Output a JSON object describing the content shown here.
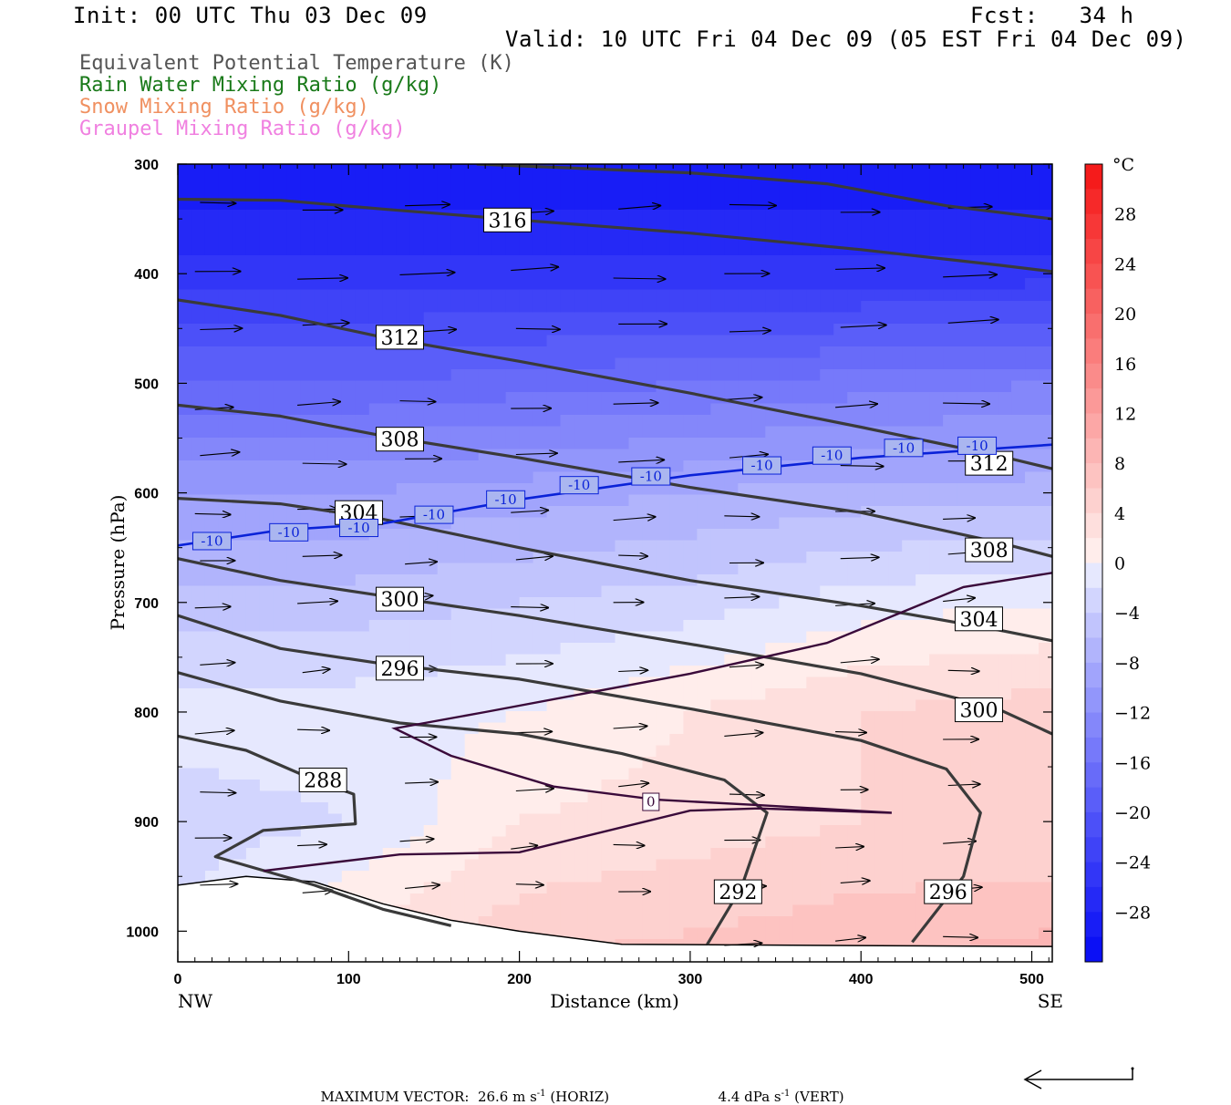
{
  "header": {
    "init": "Init: 00 UTC Thu 03 Dec 09",
    "fcst": "Fcst:   34 h",
    "valid": "Valid: 10 UTC Fri 04 Dec 09 (05 EST Fri 04 Dec 09)"
  },
  "fields": [
    {
      "label": "Equivalent Potential Temperature (K)",
      "color": "#555555"
    },
    {
      "label": "Rain Water Mixing Ratio (g/kg)",
      "color": "#1a7a1a"
    },
    {
      "label": "Snow Mixing Ratio (g/kg)",
      "color": "#f09060"
    },
    {
      "label": "Graupel Mixing Ratio (g/kg)",
      "color": "#f080e0"
    }
  ],
  "footer": {
    "max_vector_label": "MAXIMUM VECTOR:",
    "horiz_value": "26.6 m s",
    "horiz_exp": "-1",
    "horiz_unit": "(HORIZ)",
    "vert_value": "4.4 dPa s",
    "vert_exp": "-1",
    "vert_unit": "(VERT)"
  },
  "chart_data": {
    "type": "cross-section",
    "xlabel": "Distance (km)",
    "ylabel": "Pressure (hPa)",
    "xlim": [
      0,
      512
    ],
    "ylim": [
      1028,
      300
    ],
    "x_ticks": [
      0,
      100,
      200,
      300,
      400,
      500
    ],
    "y_ticks": [
      300,
      400,
      500,
      600,
      700,
      800,
      900,
      1000
    ],
    "x_end_labels": {
      "left": "NW",
      "right": "SE"
    },
    "colorbar": {
      "unit": "°C",
      "min": -32,
      "max": 32,
      "step": 4,
      "labels": [
        28,
        24,
        20,
        16,
        12,
        8,
        4,
        0,
        -4,
        -8,
        -12,
        -16,
        -20,
        -24,
        -28
      ]
    },
    "temperature_field": {
      "x_nodes": [
        0,
        100,
        200,
        300,
        400,
        512
      ],
      "p_nodes": [
        300,
        400,
        500,
        600,
        700,
        800,
        900,
        1000,
        1028
      ],
      "values_c": [
        [
          -30,
          -30,
          -30,
          -30,
          -30,
          -30
        ],
        [
          -25,
          -25,
          -25,
          -25,
          -25,
          -25
        ],
        [
          -18,
          -18,
          -17,
          -16,
          -15,
          -14
        ],
        [
          -10,
          -10,
          -9,
          -8,
          -7,
          -7
        ],
        [
          -5,
          -5,
          -4,
          -3,
          -1,
          0
        ],
        [
          -1,
          -1,
          0,
          2,
          4,
          5
        ],
        [
          -3,
          -2,
          2,
          3,
          4,
          4
        ],
        [
          -2,
          2,
          5,
          6,
          7,
          8
        ],
        [
          -2,
          3,
          6,
          7,
          8,
          9
        ]
      ]
    },
    "theta_e_contours": [
      {
        "label": "316",
        "points": [
          [
            0,
            332
          ],
          [
            60,
            333
          ],
          [
            120,
            341
          ],
          [
            200,
            351
          ],
          [
            300,
            363
          ],
          [
            400,
            378
          ],
          [
            480,
            392
          ],
          [
            512,
            398
          ]
        ]
      },
      {
        "label": "312",
        "points": [
          [
            0,
            424
          ],
          [
            60,
            438
          ],
          [
            120,
            458
          ],
          [
            200,
            480
          ],
          [
            300,
            509
          ],
          [
            400,
            540
          ],
          [
            480,
            566
          ],
          [
            512,
            578
          ]
        ]
      },
      {
        "label": "308",
        "points": [
          [
            0,
            520
          ],
          [
            60,
            530
          ],
          [
            120,
            548
          ],
          [
            200,
            568
          ],
          [
            300,
            595
          ],
          [
            400,
            618
          ],
          [
            480,
            645
          ],
          [
            512,
            658
          ]
        ]
      },
      {
        "label": "304",
        "points": [
          [
            0,
            605
          ],
          [
            60,
            610
          ],
          [
            120,
            624
          ],
          [
            200,
            650
          ],
          [
            300,
            680
          ],
          [
            400,
            703
          ],
          [
            480,
            725
          ],
          [
            512,
            735
          ]
        ]
      },
      {
        "label": "300",
        "points": [
          [
            0,
            660
          ],
          [
            60,
            680
          ],
          [
            120,
            694
          ],
          [
            200,
            712
          ],
          [
            300,
            738
          ],
          [
            400,
            765
          ],
          [
            480,
            797
          ],
          [
            512,
            820
          ]
        ]
      },
      {
        "label": "296",
        "points": [
          [
            0,
            712
          ],
          [
            60,
            742
          ],
          [
            120,
            756
          ],
          [
            200,
            770
          ],
          [
            300,
            797
          ],
          [
            400,
            826
          ],
          [
            450,
            852
          ],
          [
            470,
            892
          ],
          [
            460,
            950
          ],
          [
            430,
            1010
          ]
        ]
      },
      {
        "label": "292",
        "points": [
          [
            0,
            764
          ],
          [
            60,
            790
          ],
          [
            130,
            810
          ],
          [
            200,
            820
          ],
          [
            260,
            838
          ],
          [
            320,
            862
          ],
          [
            345,
            892
          ],
          [
            330,
            960
          ],
          [
            310,
            1012
          ]
        ]
      },
      {
        "label": "288",
        "points": [
          [
            0,
            822
          ],
          [
            40,
            835
          ],
          [
            80,
            862
          ],
          [
            103,
            875
          ],
          [
            104,
            902
          ],
          [
            50,
            908
          ],
          [
            22,
            932
          ],
          [
            80,
            958
          ],
          [
            120,
            980
          ],
          [
            160,
            995
          ]
        ]
      }
    ],
    "zero_isotherm": {
      "label": "0",
      "points": [
        [
          50,
          945
        ],
        [
          130,
          930
        ],
        [
          200,
          928
        ],
        [
          300,
          890
        ],
        [
          340,
          888
        ],
        [
          418,
          892
        ],
        [
          340,
          885
        ],
        [
          280,
          880
        ],
        [
          220,
          868
        ],
        [
          160,
          840
        ],
        [
          127,
          815
        ],
        [
          180,
          800
        ],
        [
          300,
          765
        ],
        [
          380,
          737
        ],
        [
          460,
          686
        ],
        [
          512,
          673
        ]
      ]
    },
    "minus10_isotherm": {
      "label": "-10",
      "points": [
        [
          0,
          648
        ],
        [
          60,
          634
        ],
        [
          120,
          628
        ],
        [
          200,
          606
        ],
        [
          300,
          584
        ],
        [
          400,
          568
        ],
        [
          512,
          556
        ]
      ]
    },
    "terrain_surface": [
      [
        0,
        958
      ],
      [
        40,
        950
      ],
      [
        80,
        955
      ],
      [
        120,
        975
      ],
      [
        160,
        990
      ],
      [
        200,
        1000
      ],
      [
        260,
        1012
      ],
      [
        512,
        1014
      ]
    ]
  }
}
